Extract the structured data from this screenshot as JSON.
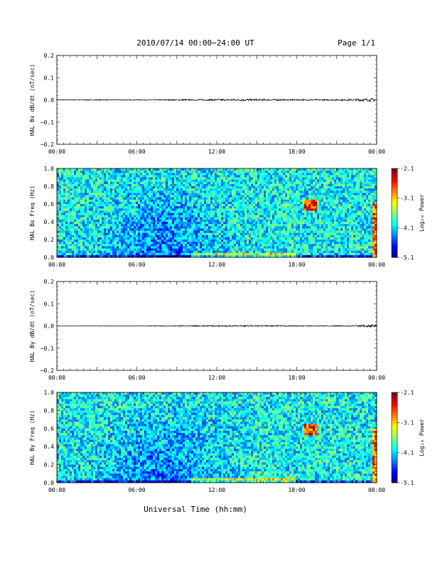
{
  "page": {
    "title": "2010/07/14  00:00−24:00 UT",
    "page_label": "Page 1/1",
    "xlabel": "Universal Time (hh:mm)"
  },
  "colorbar": {
    "label": "Log₁₀ Power",
    "ticks": [
      "-2.1",
      "-3.1",
      "-4.1",
      "-5.1"
    ],
    "range": [
      -5.1,
      -2.1
    ]
  },
  "chart_data": [
    {
      "type": "line",
      "ylabel": "HAL Bx dB/dt (nT/sec)",
      "ylim": [
        -0.2,
        0.2
      ],
      "yticks": [
        "0.2",
        "0.1",
        "0.0",
        "−0.1",
        "−0.2"
      ],
      "xticks": [
        "00:00",
        "06:00",
        "12:00",
        "18:00",
        "00:00"
      ],
      "xlim_hours": [
        0,
        24
      ],
      "series": [
        {
          "x_hours": [
            0,
            3,
            6,
            9,
            12,
            14,
            16,
            18,
            20,
            22,
            23.8,
            24
          ],
          "envelope": [
            0.002,
            0.002,
            0.002,
            0.003,
            0.004,
            0.005,
            0.004,
            0.003,
            0.003,
            0.004,
            0.008,
            0.006
          ]
        }
      ]
    },
    {
      "type": "heatmap",
      "ylabel": "HAL Bx Freq (Hz)",
      "ylim": [
        0,
        1.0
      ],
      "yticks": [
        "1.0",
        "0.8",
        "0.6",
        "0.4",
        "0.2",
        "0.0"
      ],
      "xticks": [
        "00:00",
        "06:00",
        "12:00",
        "18:00",
        "00:00"
      ],
      "xlim_hours": [
        0,
        24
      ],
      "colorscale_range": [
        -5.1,
        -2.1
      ]
    },
    {
      "type": "line",
      "ylabel": "HAL By dB/dt (nT/sec)",
      "ylim": [
        -0.2,
        0.2
      ],
      "yticks": [
        "0.2",
        "0.1",
        "0.0",
        "−0.1",
        "−0.2"
      ],
      "xticks": [
        "00:00",
        "06:00",
        "12:00",
        "18:00",
        "00:00"
      ],
      "xlim_hours": [
        0,
        24
      ],
      "series": [
        {
          "x_hours": [
            0,
            3,
            6,
            9,
            12,
            14,
            16,
            18,
            20,
            22,
            23.8,
            24
          ],
          "envelope": [
            0.001,
            0.001,
            0.001,
            0.002,
            0.003,
            0.003,
            0.003,
            0.002,
            0.002,
            0.003,
            0.006,
            0.004
          ]
        }
      ]
    },
    {
      "type": "heatmap",
      "ylabel": "HAL By Freq (Hz)",
      "ylim": [
        0,
        1.0
      ],
      "yticks": [
        "1.0",
        "0.8",
        "0.6",
        "0.4",
        "0.2",
        "0.0"
      ],
      "xticks": [
        "00:00",
        "06:00",
        "12:00",
        "18:00",
        "00:00"
      ],
      "xlim_hours": [
        0,
        24
      ],
      "colorscale_range": [
        -5.1,
        -2.1
      ]
    }
  ]
}
